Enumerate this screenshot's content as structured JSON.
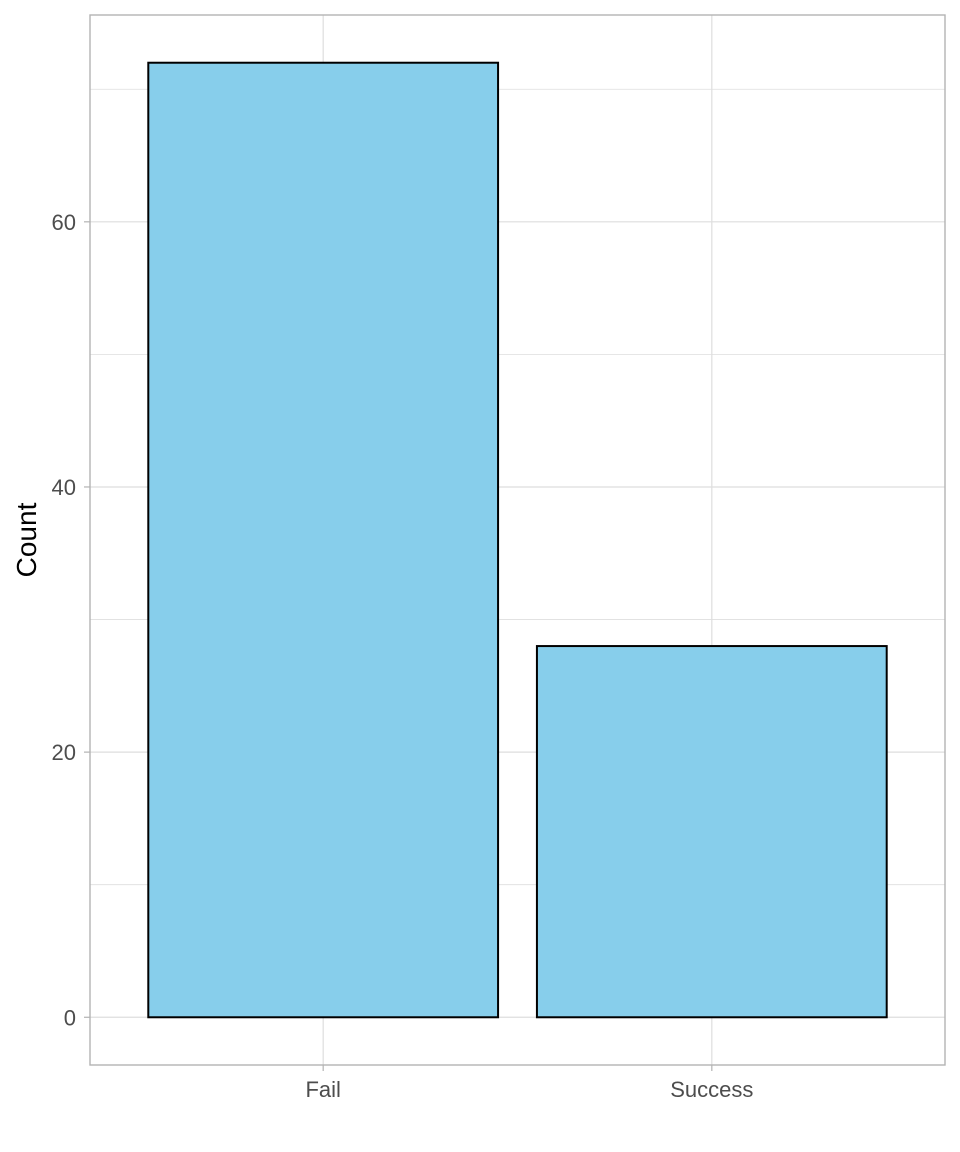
{
  "chart_data": {
    "type": "bar",
    "categories": [
      "Fail",
      "Success"
    ],
    "values": [
      72,
      28
    ],
    "title": "",
    "xlabel": "",
    "ylabel": "Count",
    "ylim": [
      -3.6,
      75.6
    ],
    "y_ticks": [
      0,
      20,
      40,
      60
    ],
    "y_tick_labels": [
      "0",
      "20",
      "40",
      "60"
    ],
    "y_minor_ticks": [
      10,
      30,
      50,
      70
    ],
    "grid": true,
    "legend": "none",
    "colors": {
      "bar_fill": "#87CEEB",
      "bar_stroke": "#000000",
      "grid": "#dedede",
      "panel_border": "#b3b3b3",
      "tick_text": "#4d4d4d",
      "axis_title": "#000000"
    }
  }
}
